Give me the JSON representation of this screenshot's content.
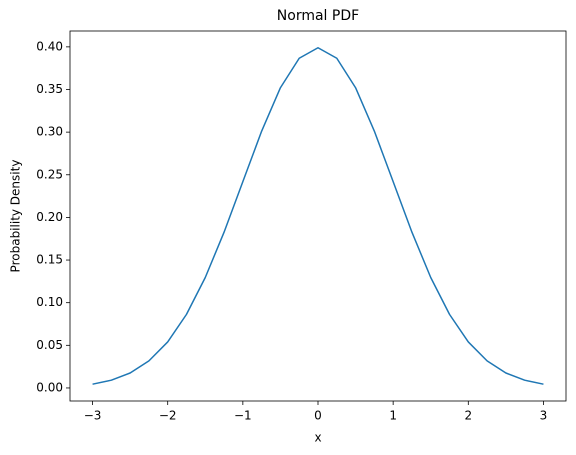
{
  "chart_data": {
    "type": "line",
    "title": "Normal PDF",
    "x_label": "x",
    "y_label": "Probability Density",
    "x": [
      -3,
      -2.75,
      -2.5,
      -2.25,
      -2,
      -1.75,
      -1.5,
      -1.25,
      -1,
      -0.75,
      -0.5,
      -0.25,
      0,
      0.25,
      0.5,
      0.75,
      1,
      1.25,
      1.5,
      1.75,
      2,
      2.25,
      2.5,
      2.75,
      3
    ],
    "series": [
      {
        "color": "#1f77b4",
        "values": [
          0.00443,
          0.00909,
          0.01753,
          0.03174,
          0.05399,
          0.08628,
          0.12952,
          0.18265,
          0.24197,
          0.30114,
          0.35207,
          0.38667,
          0.39894,
          0.38667,
          0.35207,
          0.30114,
          0.24197,
          0.18265,
          0.12952,
          0.08628,
          0.05399,
          0.03174,
          0.01753,
          0.00909,
          0.00443
        ]
      }
    ],
    "xlim": [
      -3.3,
      3.3
    ],
    "ylim": [
      -0.0153,
      0.4186
    ],
    "xticks": [
      {
        "value": -3,
        "label": "−3"
      },
      {
        "value": -2,
        "label": "−2"
      },
      {
        "value": -1,
        "label": "−1"
      },
      0,
      1,
      2,
      3
    ],
    "yticks": [
      {
        "value": 0,
        "label": "0.00"
      },
      {
        "value": 0.05,
        "label": "0.05"
      },
      {
        "value": 0.1,
        "label": "0.10"
      },
      {
        "value": 0.15,
        "label": "0.15"
      },
      {
        "value": 0.2,
        "label": "0.20"
      },
      {
        "value": 0.25,
        "label": "0.25"
      },
      {
        "value": 0.3,
        "label": "0.30"
      },
      {
        "value": 0.35,
        "label": "0.35"
      },
      {
        "value": 0.4,
        "label": "0.40"
      }
    ],
    "grid": false
  }
}
